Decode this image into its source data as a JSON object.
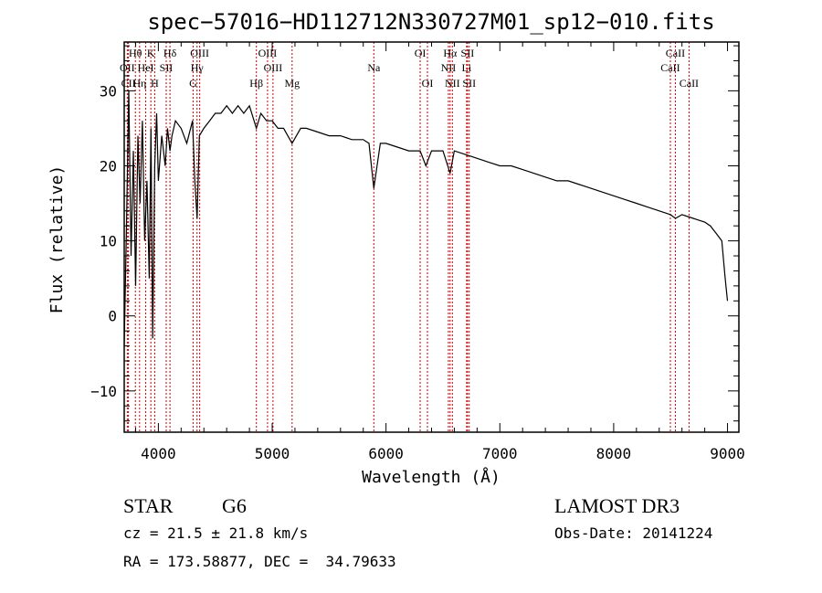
{
  "chart_data": {
    "type": "line",
    "title": "spec−57016−HD112712N330727M01_sp12−010.fits",
    "xlabel": "Wavelength (Å)",
    "ylabel": "Flux (relative)",
    "xlim": [
      3700,
      9100
    ],
    "ylim": [
      -15.5,
      36.5
    ],
    "xticks": [
      4000,
      5000,
      6000,
      7000,
      8000,
      9000
    ],
    "xtick_labels": [
      "4000",
      "5000",
      "6000",
      "7000",
      "8000",
      "9000"
    ],
    "yticks": [
      -10,
      0,
      10,
      20,
      30
    ],
    "ytick_labels": [
      "−10",
      "0",
      "10",
      "20",
      "30"
    ],
    "grid": false,
    "series": [
      {
        "name": "flux",
        "x": [
          3700,
          3720,
          3740,
          3760,
          3780,
          3800,
          3820,
          3840,
          3860,
          3880,
          3900,
          3920,
          3935,
          3950,
          3968,
          3985,
          4000,
          4030,
          4060,
          4080,
          4102,
          4120,
          4150,
          4200,
          4250,
          4300,
          4320,
          4340,
          4360,
          4400,
          4450,
          4500,
          4550,
          4600,
          4650,
          4700,
          4750,
          4800,
          4861,
          4900,
          4950,
          5000,
          5050,
          5100,
          5175,
          5250,
          5300,
          5400,
          5500,
          5600,
          5700,
          5800,
          5850,
          5893,
          5950,
          6000,
          6100,
          6200,
          6300,
          6350,
          6400,
          6500,
          6563,
          6600,
          6700,
          6800,
          6900,
          7000,
          7100,
          7200,
          7300,
          7400,
          7500,
          7600,
          7700,
          7800,
          7900,
          8000,
          8100,
          8200,
          8300,
          8400,
          8500,
          8542,
          8600,
          8700,
          8800,
          8850,
          8900,
          8950,
          8980,
          9000
        ],
        "y": [
          -4,
          12,
          30,
          8,
          22,
          4,
          24,
          15,
          26,
          10,
          18,
          5,
          25,
          -3,
          20,
          27,
          18,
          24,
          20,
          25,
          22,
          24,
          26,
          25,
          23,
          26,
          18,
          13,
          24,
          25,
          26,
          27,
          27,
          28,
          27,
          28,
          27,
          28,
          25,
          27,
          26,
          26,
          25,
          25,
          23,
          25,
          25,
          24.5,
          24,
          24,
          23.5,
          23.5,
          23,
          17,
          23,
          23,
          22.5,
          22,
          22,
          20,
          22,
          22,
          19,
          22,
          21.5,
          21,
          20.5,
          20,
          20,
          19.5,
          19,
          18.5,
          18,
          18,
          17.5,
          17,
          16.5,
          16,
          15.5,
          15,
          14.5,
          14,
          13.5,
          13,
          13.5,
          13,
          12.5,
          12,
          11,
          10,
          5,
          2
        ]
      }
    ],
    "lines": [
      {
        "name": "Hθ",
        "wavelength": 3798,
        "row": 1
      },
      {
        "name": "OII",
        "wavelength": 3727,
        "row": 2
      },
      {
        "name": "CII",
        "wavelength": 3737,
        "row": 3
      },
      {
        "name": "Hη",
        "wavelength": 3835,
        "row": 3
      },
      {
        "name": "HeI",
        "wavelength": 3889,
        "row": 2
      },
      {
        "name": "K",
        "wavelength": 3934,
        "row": 1
      },
      {
        "name": "H",
        "wavelength": 3968,
        "row": 3
      },
      {
        "name": "SII",
        "wavelength": 4069,
        "row": 2
      },
      {
        "name": "Hδ",
        "wavelength": 4102,
        "row": 1
      },
      {
        "name": "OIII",
        "wavelength": 4363,
        "row": 1
      },
      {
        "name": "Hγ",
        "wavelength": 4340,
        "row": 2
      },
      {
        "name": "G",
        "wavelength": 4305,
        "row": 3
      },
      {
        "name": "OIII",
        "wavelength": 4959,
        "row": 1
      },
      {
        "name": "OIII",
        "wavelength": 5007,
        "row": 2
      },
      {
        "name": "Hβ",
        "wavelength": 4861,
        "row": 3
      },
      {
        "name": "Mg",
        "wavelength": 5175,
        "row": 3
      },
      {
        "name": "Na",
        "wavelength": 5893,
        "row": 2
      },
      {
        "name": "OI",
        "wavelength": 6300,
        "row": 1
      },
      {
        "name": "OI",
        "wavelength": 6364,
        "row": 3
      },
      {
        "name": "Hα",
        "wavelength": 6563,
        "row": 1
      },
      {
        "name": "SII",
        "wavelength": 6716,
        "row": 1
      },
      {
        "name": "NII",
        "wavelength": 6548,
        "row": 2
      },
      {
        "name": "Li",
        "wavelength": 6708,
        "row": 2
      },
      {
        "name": "NII",
        "wavelength": 6583,
        "row": 3
      },
      {
        "name": "SII",
        "wavelength": 6731,
        "row": 3
      },
      {
        "name": "CaII",
        "wavelength": 8542,
        "row": 1
      },
      {
        "name": "CaII",
        "wavelength": 8498,
        "row": 2
      },
      {
        "name": "CaII",
        "wavelength": 8662,
        "row": 3
      }
    ]
  },
  "info": {
    "class": "STAR",
    "subclass": "G6",
    "survey": "LAMOST DR3",
    "cz": "cz = 21.5 ± 21.8 km/s",
    "obs_date": "Obs-Date: 20141224",
    "coords": "RA = 173.58877, DEC =  34.79633"
  },
  "colors": {
    "spectrum": "#000000",
    "line_marker": "#cc0000",
    "axis": "#000000"
  }
}
